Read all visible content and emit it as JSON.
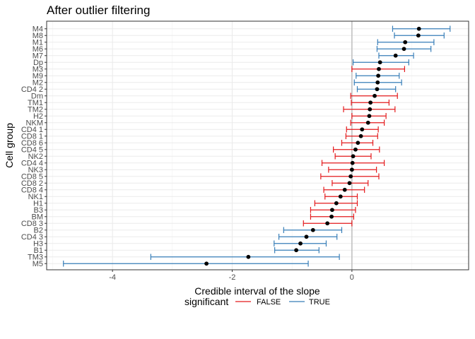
{
  "chart_data": {
    "type": "errorbar",
    "title": "After outlier filtering",
    "xlabel": "Credible interval of the slope",
    "ylabel": "Cell group",
    "xlim": [
      -5.1,
      1.95
    ],
    "x_ticks": [
      -4,
      -2,
      0
    ],
    "x_tick_labels": [
      "-4",
      "-2",
      "0"
    ],
    "reference_line_x": 0,
    "grid": true,
    "legend": {
      "title": "significant",
      "position": "bottom",
      "entries": [
        {
          "label": "FALSE",
          "color": "#e41a1c"
        },
        {
          "label": "TRUE",
          "color": "#377eb8"
        }
      ]
    },
    "point_color": "#000000",
    "groups": [
      {
        "name": "M4",
        "estimate": 1.12,
        "low": 0.68,
        "high": 1.64,
        "significant": "TRUE"
      },
      {
        "name": "M8",
        "estimate": 1.11,
        "low": 0.71,
        "high": 1.54,
        "significant": "TRUE"
      },
      {
        "name": "M1",
        "estimate": 0.89,
        "low": 0.43,
        "high": 1.37,
        "significant": "TRUE"
      },
      {
        "name": "M6",
        "estimate": 0.87,
        "low": 0.42,
        "high": 1.32,
        "significant": "TRUE"
      },
      {
        "name": "M7",
        "estimate": 0.73,
        "low": 0.45,
        "high": 1.03,
        "significant": "TRUE"
      },
      {
        "name": "Dp",
        "estimate": 0.47,
        "low": 0.02,
        "high": 0.95,
        "significant": "TRUE"
      },
      {
        "name": "M3",
        "estimate": 0.45,
        "low": 0.0,
        "high": 0.88,
        "significant": "FALSE"
      },
      {
        "name": "M9",
        "estimate": 0.44,
        "low": 0.07,
        "high": 0.79,
        "significant": "TRUE"
      },
      {
        "name": "M2",
        "estimate": 0.43,
        "low": 0.04,
        "high": 0.83,
        "significant": "TRUE"
      },
      {
        "name": "CD4 2",
        "estimate": 0.42,
        "low": 0.09,
        "high": 0.73,
        "significant": "TRUE"
      },
      {
        "name": "Dm",
        "estimate": 0.38,
        "low": -0.02,
        "high": 0.76,
        "significant": "FALSE"
      },
      {
        "name": "TM1",
        "estimate": 0.31,
        "low": -0.01,
        "high": 0.62,
        "significant": "FALSE"
      },
      {
        "name": "TM2",
        "estimate": 0.3,
        "low": -0.14,
        "high": 0.72,
        "significant": "FALSE"
      },
      {
        "name": "H2",
        "estimate": 0.29,
        "low": 0.0,
        "high": 0.57,
        "significant": "FALSE"
      },
      {
        "name": "NKM",
        "estimate": 0.27,
        "low": -0.02,
        "high": 0.54,
        "significant": "FALSE"
      },
      {
        "name": "CD4 1",
        "estimate": 0.17,
        "low": -0.09,
        "high": 0.44,
        "significant": "FALSE"
      },
      {
        "name": "CD8 1",
        "estimate": 0.15,
        "low": -0.1,
        "high": 0.43,
        "significant": "FALSE"
      },
      {
        "name": "CD8 6",
        "estimate": 0.1,
        "low": -0.17,
        "high": 0.35,
        "significant": "FALSE"
      },
      {
        "name": "CD4 5",
        "estimate": 0.06,
        "low": -0.31,
        "high": 0.46,
        "significant": "FALSE"
      },
      {
        "name": "NK2",
        "estimate": 0.02,
        "low": -0.28,
        "high": 0.32,
        "significant": "FALSE"
      },
      {
        "name": "CD4 4",
        "estimate": 0.01,
        "low": -0.5,
        "high": 0.54,
        "significant": "FALSE"
      },
      {
        "name": "NK3",
        "estimate": 0.0,
        "low": -0.39,
        "high": 0.41,
        "significant": "FALSE"
      },
      {
        "name": "CD8 5",
        "estimate": -0.02,
        "low": -0.52,
        "high": 0.45,
        "significant": "FALSE"
      },
      {
        "name": "CD8 2",
        "estimate": -0.04,
        "low": -0.33,
        "high": 0.27,
        "significant": "FALSE"
      },
      {
        "name": "CD8 4",
        "estimate": -0.12,
        "low": -0.47,
        "high": 0.21,
        "significant": "FALSE"
      },
      {
        "name": "NK1",
        "estimate": -0.19,
        "low": -0.45,
        "high": 0.09,
        "significant": "FALSE"
      },
      {
        "name": "H1",
        "estimate": -0.26,
        "low": -0.62,
        "high": 0.09,
        "significant": "FALSE"
      },
      {
        "name": "B3",
        "estimate": -0.33,
        "low": -0.69,
        "high": 0.06,
        "significant": "FALSE"
      },
      {
        "name": "BM",
        "estimate": -0.34,
        "low": -0.69,
        "high": 0.03,
        "significant": "FALSE"
      },
      {
        "name": "CD8 3",
        "estimate": -0.41,
        "low": -0.81,
        "high": 0.0,
        "significant": "FALSE"
      },
      {
        "name": "B2",
        "estimate": -0.65,
        "low": -1.14,
        "high": -0.17,
        "significant": "TRUE"
      },
      {
        "name": "CD4 3",
        "estimate": -0.76,
        "low": -1.22,
        "high": -0.25,
        "significant": "TRUE"
      },
      {
        "name": "H3",
        "estimate": -0.86,
        "low": -1.3,
        "high": -0.43,
        "significant": "TRUE"
      },
      {
        "name": "B1",
        "estimate": -0.93,
        "low": -1.29,
        "high": -0.55,
        "significant": "TRUE"
      },
      {
        "name": "TM3",
        "estimate": -1.73,
        "low": -3.36,
        "high": -0.21,
        "significant": "TRUE"
      },
      {
        "name": "M5",
        "estimate": -2.43,
        "low": -4.82,
        "high": -0.73,
        "significant": "TRUE"
      }
    ]
  }
}
